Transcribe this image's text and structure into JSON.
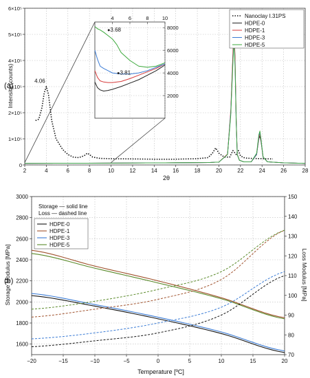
{
  "chart_data": [
    {
      "panel_label": "(a)",
      "type": "line",
      "xlabel": "2θ",
      "ylabel": "Intensity (counts)",
      "xlim": [
        2,
        28
      ],
      "ylim": [
        0,
        600000
      ],
      "xticks": [
        "2",
        "4",
        "6",
        "8",
        "10",
        "12",
        "14",
        "16",
        "18",
        "20",
        "22",
        "24",
        "26",
        "28"
      ],
      "yticks": [
        {
          "v": 0,
          "label": "0"
        },
        {
          "v": 100000,
          "label": "1×10⁵"
        },
        {
          "v": 200000,
          "label": "2×10⁵"
        },
        {
          "v": 300000,
          "label": "3×10⁵"
        },
        {
          "v": 400000,
          "label": "4×10⁵"
        },
        {
          "v": 500000,
          "label": "5×10⁵"
        },
        {
          "v": 600000,
          "label": "6×10⁵"
        }
      ],
      "grid": true,
      "legend_position": "top-right",
      "series": [
        {
          "name": "Nanoclay I.31PS",
          "color": "#111111",
          "dash": "dotted",
          "x": [
            3,
            3.3,
            3.6,
            3.8,
            4.0,
            4.2,
            4.5,
            4.9,
            5.5,
            6,
            6.5,
            7,
            7.5,
            7.8,
            8,
            8.3,
            9,
            10,
            12,
            14,
            16,
            18,
            19,
            19.4,
            19.7,
            20,
            20.5,
            21,
            21.3,
            21.6,
            21.8,
            22,
            22.3,
            22.6,
            23,
            24,
            25
          ],
          "y": [
            170000,
            175000,
            220000,
            275000,
            300000,
            270000,
            170000,
            100000,
            60000,
            40000,
            30000,
            28000,
            35000,
            45000,
            40000,
            30000,
            25000,
            24000,
            23000,
            22000,
            22000,
            24000,
            28000,
            45000,
            65000,
            45000,
            30000,
            30000,
            55000,
            40000,
            55000,
            35000,
            28000,
            26000,
            25000,
            24000,
            23000
          ]
        },
        {
          "name": "HDPE-0",
          "color": "#222222",
          "dash": "solid",
          "x": [
            2,
            10,
            15,
            19,
            20,
            20.8,
            21.1,
            21.3,
            21.4,
            21.5,
            21.6,
            21.7,
            21.9,
            22.3,
            23,
            23.5,
            23.7,
            23.8,
            23.9,
            24.1,
            24.5,
            26,
            28
          ],
          "y": [
            6000,
            7000,
            8000,
            9000,
            11000,
            40000,
            200000,
            420000,
            520000,
            400000,
            180000,
            40000,
            18000,
            12000,
            12000,
            40000,
            100000,
            110000,
            90000,
            30000,
            12000,
            8000,
            6000
          ]
        },
        {
          "name": "HDPE-1",
          "color": "#d63a3a",
          "dash": "solid",
          "x": [
            2,
            10,
            15,
            19,
            20,
            20.8,
            21.1,
            21.3,
            21.4,
            21.5,
            21.6,
            21.7,
            21.9,
            22.3,
            23,
            23.5,
            23.7,
            23.8,
            23.9,
            24.1,
            24.5,
            26,
            28
          ],
          "y": [
            6000,
            7000,
            8000,
            9000,
            11000,
            42000,
            210000,
            430000,
            530000,
            410000,
            185000,
            42000,
            18000,
            12000,
            12000,
            42000,
            105000,
            118000,
            95000,
            30000,
            12000,
            8000,
            6000
          ]
        },
        {
          "name": "HDPE-3",
          "color": "#3a7bd5",
          "dash": "solid",
          "x": [
            2,
            10,
            15,
            19,
            20,
            20.8,
            21.1,
            21.3,
            21.4,
            21.5,
            21.6,
            21.7,
            21.9,
            22.3,
            23,
            23.5,
            23.7,
            23.8,
            23.9,
            24.1,
            24.5,
            26,
            28
          ],
          "y": [
            6000,
            7000,
            8000,
            9000,
            11000,
            40000,
            200000,
            400000,
            490000,
            380000,
            170000,
            40000,
            18000,
            12000,
            12000,
            42000,
            110000,
            125000,
            98000,
            30000,
            12000,
            8000,
            6000
          ]
        },
        {
          "name": "HDPE-5",
          "color": "#3aa83a",
          "dash": "solid",
          "x": [
            2,
            10,
            15,
            19,
            20,
            20.8,
            21.1,
            21.3,
            21.4,
            21.5,
            21.6,
            21.7,
            21.9,
            22.3,
            23,
            23.5,
            23.7,
            23.8,
            23.9,
            24.1,
            24.5,
            26,
            28
          ],
          "y": [
            6000,
            7000,
            8000,
            9000,
            11000,
            40000,
            190000,
            390000,
            480000,
            370000,
            165000,
            40000,
            18000,
            12000,
            12000,
            45000,
            115000,
            130000,
            100000,
            30000,
            12000,
            8000,
            6000
          ]
        }
      ],
      "annotations": [
        {
          "text": "4.06",
          "x": 3.4,
          "y": 315000
        }
      ],
      "inset": {
        "xlim": [
          2,
          10
        ],
        "ylim": [
          0,
          8500
        ],
        "xticks": [
          "4",
          "6",
          "8",
          "10"
        ],
        "yticks": [
          {
            "v": 2000,
            "label": "2000"
          },
          {
            "v": 4000,
            "label": "4000"
          },
          {
            "v": 6000,
            "label": "6000"
          },
          {
            "v": 8000,
            "label": "8000"
          }
        ],
        "annotations": [
          {
            "text": "3.68",
            "x": 3.9,
            "y": 7900
          },
          {
            "text": "3.81",
            "x": 5.0,
            "y": 4100
          }
        ],
        "series": [
          {
            "name": "HDPE-0",
            "color": "#222222",
            "x": [
              2,
              2.3,
              2.6,
              3,
              3.5,
              4,
              5,
              6,
              7,
              8,
              9,
              10
            ],
            "y": [
              3200,
              2700,
              2500,
              2400,
              2450,
              2550,
              2800,
              3100,
              3400,
              3800,
              4200,
              4700
            ]
          },
          {
            "name": "HDPE-1",
            "color": "#d63a3a",
            "x": [
              2,
              2.3,
              2.6,
              3,
              3.5,
              4,
              5,
              6,
              7,
              8,
              9,
              10
            ],
            "y": [
              4200,
              3600,
              3300,
              3200,
              3150,
              3150,
              3250,
              3500,
              3800,
              4100,
              4400,
              4800
            ]
          },
          {
            "name": "HDPE-3",
            "color": "#3a7bd5",
            "x": [
              2,
              2.3,
              2.6,
              3,
              3.5,
              4,
              5,
              6,
              7,
              8,
              9,
              10
            ],
            "y": [
              6000,
              5200,
              4600,
              4400,
              4200,
              4000,
              3900,
              3900,
              4000,
              4200,
              4500,
              4800
            ]
          },
          {
            "name": "HDPE-5",
            "color": "#3aa83a",
            "x": [
              2,
              2.3,
              2.6,
              3,
              3.5,
              4,
              4.5,
              5,
              6,
              7,
              8,
              9,
              10
            ],
            "y": [
              8100,
              7900,
              7800,
              7600,
              7300,
              7000,
              6500,
              5800,
              5100,
              4600,
              4500,
              4600,
              4900
            ]
          }
        ]
      }
    },
    {
      "panel_label": "(b)",
      "type": "line",
      "xlabel": "Temperature [ºC]",
      "ylabel": "Storage Modulus [MPa]",
      "ylabel_right": "Loss Modulus [MPa]",
      "xlim": [
        -20,
        20
      ],
      "ylim": [
        1500,
        3000
      ],
      "ylim_right": [
        70,
        150
      ],
      "xticks": [
        "−20",
        "−15",
        "−10",
        "−5",
        "0",
        "5",
        "10",
        "15",
        "20"
      ],
      "xtick_values": [
        -20,
        -15,
        -10,
        -5,
        0,
        5,
        10,
        15,
        20
      ],
      "yticks": [
        "1600",
        "1800",
        "2000",
        "2200",
        "2400",
        "2600",
        "2800",
        "3000"
      ],
      "ytick_values": [
        1600,
        1800,
        2000,
        2200,
        2400,
        2600,
        2800,
        3000
      ],
      "yticks_right": [
        "70",
        "80",
        "90",
        "100",
        "110",
        "120",
        "130",
        "140",
        "150"
      ],
      "ytick_right_values": [
        70,
        80,
        90,
        100,
        110,
        120,
        130,
        140,
        150
      ],
      "grid": true,
      "note_lines": [
        "Storage — solid line",
        "Loss — dashed line"
      ],
      "legend_position": "top-left",
      "legend": [
        {
          "name": "HDPE-0",
          "color": "#111111"
        },
        {
          "name": "HDPE-1",
          "color": "#a0522d"
        },
        {
          "name": "HDPE-3",
          "color": "#3a7bd5"
        },
        {
          "name": "HDPE-5",
          "color": "#5a8a2a"
        }
      ],
      "storage": [
        {
          "name": "HDPE-0",
          "color": "#111111",
          "x": [
            -20,
            -10,
            0,
            10,
            20
          ],
          "y": [
            2060,
            1960,
            1840,
            1700,
            1520
          ]
        },
        {
          "name": "HDPE-1",
          "color": "#a0522d",
          "x": [
            -20,
            -10,
            0,
            10,
            20
          ],
          "y": [
            2490,
            2340,
            2200,
            2040,
            1850
          ]
        },
        {
          "name": "HDPE-3",
          "color": "#3a7bd5",
          "x": [
            -20,
            -10,
            0,
            10,
            20
          ],
          "y": [
            2080,
            1975,
            1855,
            1715,
            1535
          ]
        },
        {
          "name": "HDPE-5",
          "color": "#5a8a2a",
          "x": [
            -20,
            -10,
            0,
            10,
            20
          ],
          "y": [
            2460,
            2320,
            2180,
            2030,
            1840
          ]
        }
      ],
      "loss": [
        {
          "name": "HDPE-0",
          "color": "#111111",
          "x": [
            -20,
            -10,
            0,
            10,
            20
          ],
          "y": [
            74,
            77,
            81,
            90,
            110
          ]
        },
        {
          "name": "HDPE-1",
          "color": "#a0522d",
          "x": [
            -20,
            -10,
            0,
            10,
            20
          ],
          "y": [
            89,
            93,
            98,
            108,
            133
          ]
        },
        {
          "name": "HDPE-3",
          "color": "#3a7bd5",
          "x": [
            -20,
            -10,
            0,
            10,
            20
          ],
          "y": [
            78,
            81,
            86,
            94,
            112
          ]
        },
        {
          "name": "HDPE-5",
          "color": "#5a8a2a",
          "x": [
            -20,
            -10,
            0,
            10,
            20
          ],
          "y": [
            93,
            97,
            103,
            112,
            133
          ]
        }
      ]
    }
  ]
}
